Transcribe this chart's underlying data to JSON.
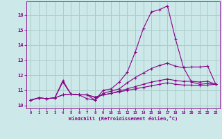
{
  "xlabel": "Windchill (Refroidissement éolien,°C)",
  "ylabel": "",
  "background_color": "#cce8e8",
  "grid_color": "#aacccc",
  "line_color": "#880088",
  "xlim": [
    -0.5,
    23.5
  ],
  "ylim": [
    9.8,
    16.9
  ],
  "xticks": [
    0,
    1,
    2,
    3,
    4,
    5,
    6,
    7,
    8,
    9,
    10,
    11,
    12,
    13,
    14,
    15,
    16,
    17,
    18,
    19,
    20,
    21,
    22,
    23
  ],
  "yticks": [
    10,
    11,
    12,
    13,
    14,
    15,
    16
  ],
  "series": [
    [
      10.35,
      10.5,
      10.45,
      10.5,
      11.65,
      10.75,
      10.7,
      10.7,
      10.35,
      11.0,
      11.1,
      11.55,
      12.2,
      13.55,
      15.1,
      16.2,
      16.35,
      16.6,
      14.4,
      12.5,
      11.55,
      11.4,
      11.45,
      11.4
    ],
    [
      10.35,
      10.5,
      10.45,
      10.5,
      11.55,
      10.75,
      10.7,
      10.45,
      10.35,
      10.8,
      10.95,
      11.1,
      11.5,
      11.85,
      12.15,
      12.45,
      12.65,
      12.8,
      12.6,
      12.5,
      12.55,
      12.55,
      12.6,
      11.4
    ],
    [
      10.35,
      10.5,
      10.45,
      10.5,
      10.7,
      10.75,
      10.7,
      10.7,
      10.55,
      10.7,
      10.8,
      10.95,
      11.1,
      11.25,
      11.4,
      11.55,
      11.65,
      11.75,
      11.65,
      11.6,
      11.6,
      11.55,
      11.6,
      11.4
    ],
    [
      10.35,
      10.5,
      10.45,
      10.5,
      10.7,
      10.75,
      10.7,
      10.7,
      10.55,
      10.7,
      10.8,
      10.9,
      11.0,
      11.1,
      11.2,
      11.3,
      11.4,
      11.5,
      11.4,
      11.35,
      11.35,
      11.3,
      11.35,
      11.4
    ]
  ]
}
